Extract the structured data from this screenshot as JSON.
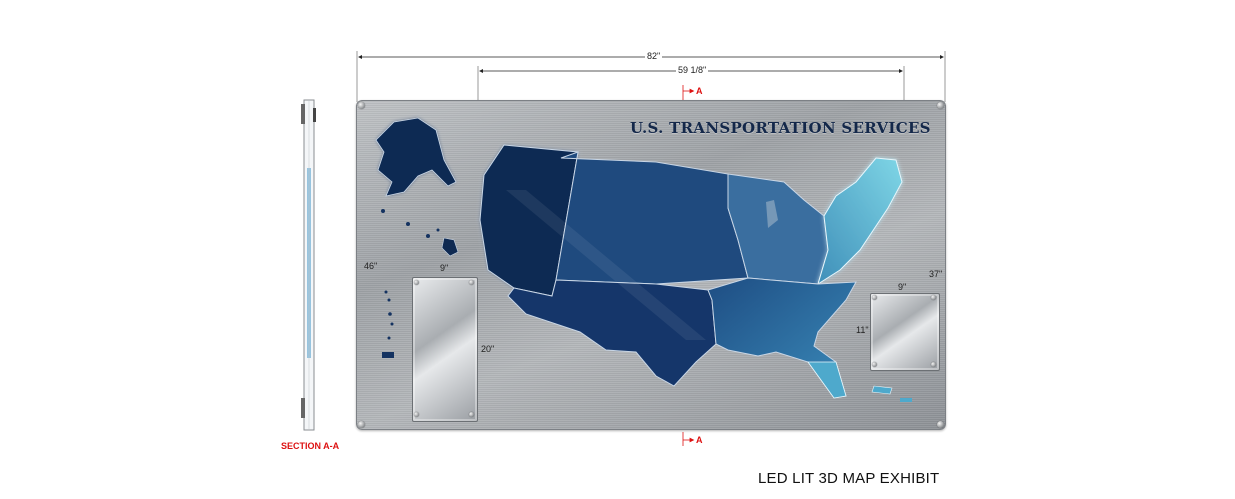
{
  "dimensions": {
    "overall_width": "82\"",
    "map_width": "59 1/8\"",
    "height": "46\"",
    "left_plaque_width": "9\"",
    "left_plaque_height": "20\"",
    "right_plaque_width": "9\"",
    "right_plaque_height": "11\"",
    "right_offset": "37\""
  },
  "section_markers": {
    "top": "A",
    "bottom": "A"
  },
  "panel": {
    "title": "U.S. TRANSPORTATION SERVICES"
  },
  "section_label": "SECTION A-A",
  "caption": "LED LIT 3D MAP EXHIBIT",
  "colors": {
    "west": "#0f2a52",
    "central": "#1f4a7e",
    "east": "#3f77a8",
    "northeast": "#5fb6cf",
    "brushed_metal": "#a8acb0",
    "dimension_red": "#dd1111"
  }
}
